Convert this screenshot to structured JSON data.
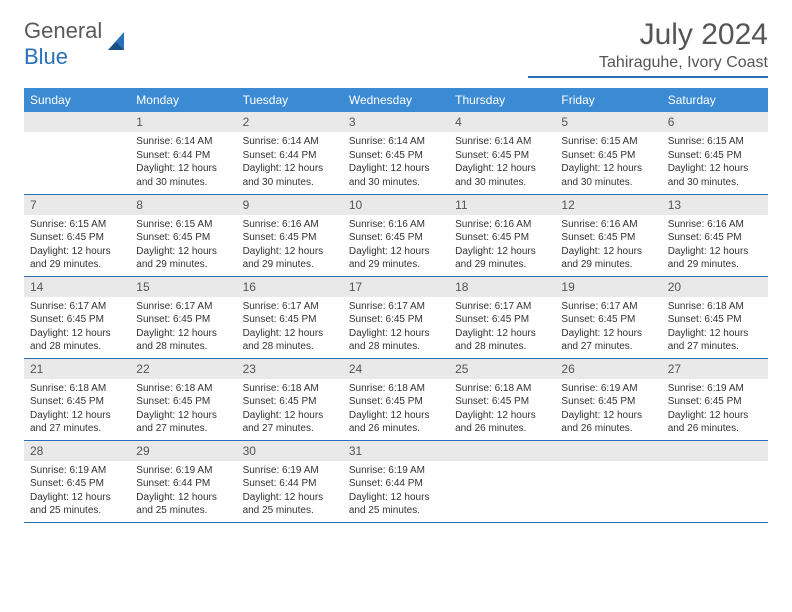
{
  "brand": {
    "part1": "General",
    "part2": "Blue"
  },
  "title": "July 2024",
  "location": "Tahiraguhe, Ivory Coast",
  "colors": {
    "accent": "#3b8bd4",
    "rule": "#2970b8",
    "headerText": "#ffffff",
    "dayBg": "#e9e9e9"
  },
  "weekdays": [
    "Sunday",
    "Monday",
    "Tuesday",
    "Wednesday",
    "Thursday",
    "Friday",
    "Saturday"
  ],
  "startOffset": 1,
  "days": [
    {
      "n": 1,
      "sr": "6:14 AM",
      "ss": "6:44 PM",
      "dl": "12 hours and 30 minutes."
    },
    {
      "n": 2,
      "sr": "6:14 AM",
      "ss": "6:44 PM",
      "dl": "12 hours and 30 minutes."
    },
    {
      "n": 3,
      "sr": "6:14 AM",
      "ss": "6:45 PM",
      "dl": "12 hours and 30 minutes."
    },
    {
      "n": 4,
      "sr": "6:14 AM",
      "ss": "6:45 PM",
      "dl": "12 hours and 30 minutes."
    },
    {
      "n": 5,
      "sr": "6:15 AM",
      "ss": "6:45 PM",
      "dl": "12 hours and 30 minutes."
    },
    {
      "n": 6,
      "sr": "6:15 AM",
      "ss": "6:45 PM",
      "dl": "12 hours and 30 minutes."
    },
    {
      "n": 7,
      "sr": "6:15 AM",
      "ss": "6:45 PM",
      "dl": "12 hours and 29 minutes."
    },
    {
      "n": 8,
      "sr": "6:15 AM",
      "ss": "6:45 PM",
      "dl": "12 hours and 29 minutes."
    },
    {
      "n": 9,
      "sr": "6:16 AM",
      "ss": "6:45 PM",
      "dl": "12 hours and 29 minutes."
    },
    {
      "n": 10,
      "sr": "6:16 AM",
      "ss": "6:45 PM",
      "dl": "12 hours and 29 minutes."
    },
    {
      "n": 11,
      "sr": "6:16 AM",
      "ss": "6:45 PM",
      "dl": "12 hours and 29 minutes."
    },
    {
      "n": 12,
      "sr": "6:16 AM",
      "ss": "6:45 PM",
      "dl": "12 hours and 29 minutes."
    },
    {
      "n": 13,
      "sr": "6:16 AM",
      "ss": "6:45 PM",
      "dl": "12 hours and 29 minutes."
    },
    {
      "n": 14,
      "sr": "6:17 AM",
      "ss": "6:45 PM",
      "dl": "12 hours and 28 minutes."
    },
    {
      "n": 15,
      "sr": "6:17 AM",
      "ss": "6:45 PM",
      "dl": "12 hours and 28 minutes."
    },
    {
      "n": 16,
      "sr": "6:17 AM",
      "ss": "6:45 PM",
      "dl": "12 hours and 28 minutes."
    },
    {
      "n": 17,
      "sr": "6:17 AM",
      "ss": "6:45 PM",
      "dl": "12 hours and 28 minutes."
    },
    {
      "n": 18,
      "sr": "6:17 AM",
      "ss": "6:45 PM",
      "dl": "12 hours and 28 minutes."
    },
    {
      "n": 19,
      "sr": "6:17 AM",
      "ss": "6:45 PM",
      "dl": "12 hours and 27 minutes."
    },
    {
      "n": 20,
      "sr": "6:18 AM",
      "ss": "6:45 PM",
      "dl": "12 hours and 27 minutes."
    },
    {
      "n": 21,
      "sr": "6:18 AM",
      "ss": "6:45 PM",
      "dl": "12 hours and 27 minutes."
    },
    {
      "n": 22,
      "sr": "6:18 AM",
      "ss": "6:45 PM",
      "dl": "12 hours and 27 minutes."
    },
    {
      "n": 23,
      "sr": "6:18 AM",
      "ss": "6:45 PM",
      "dl": "12 hours and 27 minutes."
    },
    {
      "n": 24,
      "sr": "6:18 AM",
      "ss": "6:45 PM",
      "dl": "12 hours and 26 minutes."
    },
    {
      "n": 25,
      "sr": "6:18 AM",
      "ss": "6:45 PM",
      "dl": "12 hours and 26 minutes."
    },
    {
      "n": 26,
      "sr": "6:19 AM",
      "ss": "6:45 PM",
      "dl": "12 hours and 26 minutes."
    },
    {
      "n": 27,
      "sr": "6:19 AM",
      "ss": "6:45 PM",
      "dl": "12 hours and 26 minutes."
    },
    {
      "n": 28,
      "sr": "6:19 AM",
      "ss": "6:45 PM",
      "dl": "12 hours and 25 minutes."
    },
    {
      "n": 29,
      "sr": "6:19 AM",
      "ss": "6:44 PM",
      "dl": "12 hours and 25 minutes."
    },
    {
      "n": 30,
      "sr": "6:19 AM",
      "ss": "6:44 PM",
      "dl": "12 hours and 25 minutes."
    },
    {
      "n": 31,
      "sr": "6:19 AM",
      "ss": "6:44 PM",
      "dl": "12 hours and 25 minutes."
    }
  ],
  "labels": {
    "sunrise": "Sunrise:",
    "sunset": "Sunset:",
    "daylight": "Daylight:"
  }
}
